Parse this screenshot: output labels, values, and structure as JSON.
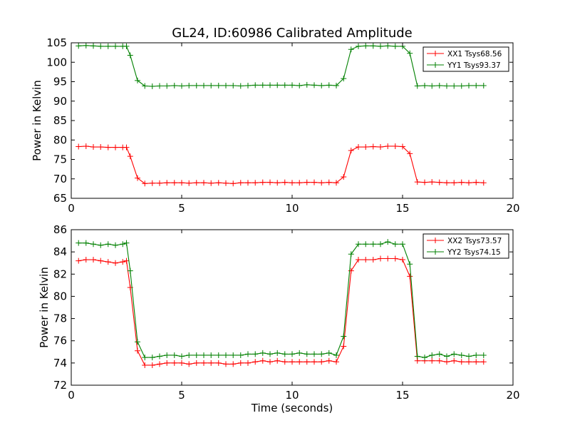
{
  "figure": {
    "title": "GL24, ID:60986 Calibrated Amplitude",
    "xlabel": "Time (seconds)"
  },
  "colors": {
    "red": "#ff0000",
    "green": "#008000"
  },
  "chart_data": [
    {
      "type": "line",
      "title": "GL24, ID:60986 Calibrated Amplitude",
      "xlabel": "",
      "ylabel": "Power in Kelvin",
      "xlim": [
        0,
        20
      ],
      "ylim": [
        65,
        105
      ],
      "xticks": [
        "0",
        "5",
        "10",
        "15",
        "20"
      ],
      "yticks": [
        "65",
        "70",
        "75",
        "80",
        "85",
        "90",
        "95",
        "100",
        "105"
      ],
      "legend_position": "top-right",
      "grid": false,
      "x": [
        0.33,
        0.67,
        1.0,
        1.33,
        1.67,
        2.0,
        2.33,
        2.5,
        2.67,
        3.0,
        3.33,
        3.67,
        4.0,
        4.33,
        4.67,
        5.0,
        5.33,
        5.67,
        6.0,
        6.33,
        6.67,
        7.0,
        7.33,
        7.67,
        8.0,
        8.33,
        8.67,
        9.0,
        9.33,
        9.67,
        10.0,
        10.33,
        10.67,
        11.0,
        11.33,
        11.67,
        12.0,
        12.33,
        12.67,
        13.0,
        13.33,
        13.67,
        14.0,
        14.33,
        14.67,
        15.0,
        15.33,
        15.67,
        16.0,
        16.33,
        16.67,
        17.0,
        17.33,
        17.67,
        18.0,
        18.33,
        18.67
      ],
      "series": [
        {
          "name": "XX1 Tsys68.56",
          "color": "#ff0000",
          "values": [
            78.3,
            78.4,
            78.2,
            78.2,
            78.1,
            78.1,
            78.1,
            78.1,
            75.8,
            70.2,
            68.8,
            68.9,
            68.9,
            69.0,
            69.0,
            69.0,
            68.9,
            69.0,
            69.0,
            68.9,
            69.0,
            68.9,
            68.8,
            69.0,
            69.0,
            69.0,
            69.1,
            69.1,
            69.0,
            69.1,
            69.0,
            69.0,
            69.1,
            69.1,
            69.0,
            69.1,
            69.0,
            70.5,
            77.3,
            78.2,
            78.2,
            78.3,
            78.2,
            78.4,
            78.4,
            78.3,
            76.5,
            69.2,
            69.1,
            69.2,
            69.1,
            69.0,
            69.0,
            69.1,
            69.0,
            69.1,
            69.0
          ]
        },
        {
          "name": "YY1 Tsys93.37",
          "color": "#008000",
          "values": [
            104.2,
            104.3,
            104.2,
            104.1,
            104.1,
            104.1,
            104.1,
            104.1,
            101.8,
            95.3,
            93.9,
            93.8,
            93.9,
            93.9,
            94.0,
            93.9,
            94.0,
            94.0,
            94.0,
            94.0,
            94.0,
            94.0,
            94.0,
            93.9,
            94.0,
            94.1,
            94.1,
            94.1,
            94.1,
            94.1,
            94.1,
            94.0,
            94.2,
            94.1,
            94.0,
            94.1,
            94.0,
            95.8,
            103.3,
            104.1,
            104.2,
            104.2,
            104.1,
            104.2,
            104.1,
            104.1,
            102.3,
            93.9,
            94.0,
            93.9,
            94.0,
            93.9,
            93.9,
            93.9,
            94.0,
            94.0,
            94.0
          ]
        }
      ]
    },
    {
      "type": "line",
      "xlabel": "Time (seconds)",
      "ylabel": "Power in Kelvin",
      "xlim": [
        0,
        20
      ],
      "ylim": [
        72,
        86
      ],
      "xticks": [
        "0",
        "5",
        "10",
        "15",
        "20"
      ],
      "yticks": [
        "72",
        "74",
        "76",
        "78",
        "80",
        "82",
        "84",
        "86"
      ],
      "legend_position": "top-right",
      "grid": false,
      "x": [
        0.33,
        0.67,
        1.0,
        1.33,
        1.67,
        2.0,
        2.33,
        2.5,
        2.67,
        3.0,
        3.33,
        3.67,
        4.0,
        4.33,
        4.67,
        5.0,
        5.33,
        5.67,
        6.0,
        6.33,
        6.67,
        7.0,
        7.33,
        7.67,
        8.0,
        8.33,
        8.67,
        9.0,
        9.33,
        9.67,
        10.0,
        10.33,
        10.67,
        11.0,
        11.33,
        11.67,
        12.0,
        12.33,
        12.67,
        13.0,
        13.33,
        13.67,
        14.0,
        14.33,
        14.67,
        15.0,
        15.33,
        15.67,
        16.0,
        16.33,
        16.67,
        17.0,
        17.33,
        17.67,
        18.0,
        18.33,
        18.67
      ],
      "series": [
        {
          "name": "XX2 Tsys73.57",
          "color": "#ff0000",
          "values": [
            83.2,
            83.3,
            83.3,
            83.2,
            83.1,
            83.0,
            83.1,
            83.2,
            80.8,
            75.1,
            73.8,
            73.8,
            73.9,
            74.0,
            74.0,
            74.0,
            73.9,
            74.0,
            74.0,
            74.0,
            74.0,
            73.9,
            73.9,
            74.0,
            74.0,
            74.1,
            74.2,
            74.1,
            74.2,
            74.1,
            74.1,
            74.1,
            74.1,
            74.1,
            74.1,
            74.2,
            74.1,
            75.5,
            82.3,
            83.3,
            83.3,
            83.3,
            83.4,
            83.4,
            83.4,
            83.3,
            81.8,
            74.2,
            74.2,
            74.2,
            74.2,
            74.1,
            74.2,
            74.1,
            74.1,
            74.1,
            74.1
          ]
        },
        {
          "name": "YY2 Tsys74.15",
          "color": "#008000",
          "values": [
            84.8,
            84.8,
            84.7,
            84.6,
            84.7,
            84.6,
            84.7,
            84.8,
            82.3,
            75.9,
            74.5,
            74.5,
            74.6,
            74.7,
            74.7,
            74.6,
            74.7,
            74.7,
            74.7,
            74.7,
            74.7,
            74.7,
            74.7,
            74.7,
            74.8,
            74.8,
            74.9,
            74.8,
            74.9,
            74.8,
            74.8,
            74.9,
            74.8,
            74.8,
            74.8,
            74.9,
            74.7,
            76.4,
            83.8,
            84.7,
            84.7,
            84.7,
            84.7,
            84.9,
            84.7,
            84.7,
            82.9,
            74.6,
            74.5,
            74.7,
            74.8,
            74.6,
            74.8,
            74.7,
            74.6,
            74.7,
            74.7
          ]
        }
      ]
    }
  ]
}
